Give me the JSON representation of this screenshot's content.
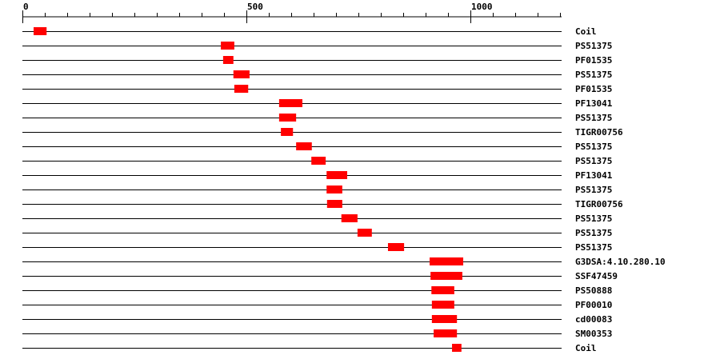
{
  "axis": {
    "min": 0,
    "max": 1200,
    "major_ticks": [
      0,
      500,
      1000
    ],
    "minor_tick_step": 50,
    "tick_labels": [
      "0",
      "500",
      "1000"
    ]
  },
  "colors": {
    "domain": "#ff0000",
    "line": "#000000"
  },
  "tracks": [
    {
      "label": "Coil",
      "start": 25,
      "end": 54
    },
    {
      "label": "PS51375",
      "start": 443,
      "end": 473
    },
    {
      "label": "PF01535",
      "start": 448,
      "end": 471
    },
    {
      "label": "PS51375",
      "start": 471,
      "end": 507
    },
    {
      "label": "PF01535",
      "start": 473,
      "end": 504
    },
    {
      "label": "PF13041",
      "start": 573,
      "end": 625
    },
    {
      "label": "PS51375",
      "start": 573,
      "end": 611
    },
    {
      "label": "TIGR00756",
      "start": 577,
      "end": 604
    },
    {
      "label": "PS51375",
      "start": 611,
      "end": 646
    },
    {
      "label": "PS51375",
      "start": 645,
      "end": 677
    },
    {
      "label": "PF13041",
      "start": 679,
      "end": 725
    },
    {
      "label": "PS51375",
      "start": 679,
      "end": 714
    },
    {
      "label": "TIGR00756",
      "start": 680,
      "end": 714
    },
    {
      "label": "PS51375",
      "start": 712,
      "end": 748
    },
    {
      "label": "PS51375",
      "start": 748,
      "end": 780
    },
    {
      "label": "PS51375",
      "start": 816,
      "end": 852
    },
    {
      "label": "G3DSA:4.10.280.10",
      "start": 909,
      "end": 984
    },
    {
      "label": "SSF47459",
      "start": 911,
      "end": 982
    },
    {
      "label": "PS50888",
      "start": 913,
      "end": 964
    },
    {
      "label": "PF00010",
      "start": 914,
      "end": 964
    },
    {
      "label": "cd00083",
      "start": 914,
      "end": 970
    },
    {
      "label": "SM00353",
      "start": 918,
      "end": 970
    },
    {
      "label": "Coil",
      "start": 959,
      "end": 980
    }
  ]
}
